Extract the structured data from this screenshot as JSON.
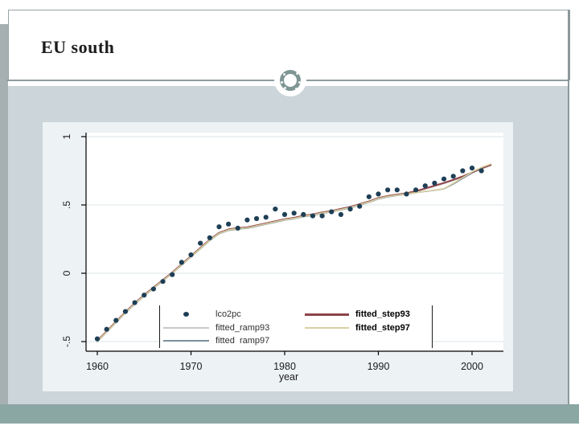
{
  "slide": {
    "title": "EU south",
    "colors": {
      "content_bg": "#ccd5d9",
      "footer_band": "#8ba7a3",
      "frame_border": "#8b999c",
      "ornament_ring": "#7e9694"
    }
  },
  "chart_data": {
    "type": "line",
    "title": "",
    "xlabel": "year",
    "ylabel": "",
    "xlim": [
      1958.8,
      2003.3
    ],
    "ylim": [
      -0.57,
      1.03
    ],
    "grid": "horizontal",
    "x_ticks": [
      1960,
      1970,
      1980,
      1990,
      2000
    ],
    "x_tick_labels": [
      "1960",
      "1970",
      "1980",
      "1990",
      "2000"
    ],
    "y_ticks": [
      1,
      0.5,
      0,
      -0.5
    ],
    "y_tick_labels": [
      "1",
      ".5",
      "0",
      "-.5"
    ],
    "colors": {
      "figure_bg": "#edf2f4",
      "plot_bg": "#ffffff",
      "grid": "#e2eaed",
      "axis": "#000000",
      "scatter": "#1e3f55",
      "ramp93": "#c6cac6",
      "ramp97": "#7b909b",
      "step93": "#8e4348",
      "step97": "#d9d0a0"
    },
    "series": [
      {
        "name": "lco2pc",
        "type": "scatter",
        "color": "#1e3f55",
        "x": [
          1960,
          1961,
          1962,
          1963,
          1964,
          1965,
          1966,
          1967,
          1968,
          1969,
          1970,
          1971,
          1972,
          1973,
          1974,
          1975,
          1976,
          1977,
          1978,
          1979,
          1980,
          1981,
          1982,
          1983,
          1984,
          1985,
          1986,
          1987,
          1988,
          1989,
          1990,
          1991,
          1992,
          1993,
          1994,
          1995,
          1996,
          1997,
          1998,
          1999,
          2000,
          2001
        ],
        "y": [
          -0.48,
          -0.41,
          -0.345,
          -0.28,
          -0.215,
          -0.16,
          -0.115,
          -0.06,
          -0.01,
          0.08,
          0.135,
          0.22,
          0.26,
          0.34,
          0.36,
          0.33,
          0.39,
          0.4,
          0.41,
          0.47,
          0.43,
          0.44,
          0.43,
          0.42,
          0.42,
          0.45,
          0.43,
          0.47,
          0.49,
          0.56,
          0.58,
          0.61,
          0.61,
          0.58,
          0.61,
          0.64,
          0.66,
          0.69,
          0.71,
          0.75,
          0.77,
          0.75
        ]
      },
      {
        "name": "fitted_ramp93",
        "type": "line",
        "color": "#c6cac6",
        "width": 1.3,
        "x": [
          1960,
          1961,
          1962,
          1963,
          1964,
          1965,
          1966,
          1967,
          1968,
          1969,
          1970,
          1971,
          1972,
          1973,
          1974,
          1975,
          1976,
          1977,
          1978,
          1979,
          1980,
          1981,
          1982,
          1983,
          1984,
          1985,
          1986,
          1987,
          1988,
          1989,
          1990,
          1991,
          1992,
          1993,
          1994,
          1995,
          1996,
          1997,
          1998,
          1999,
          2000,
          2001,
          2002
        ],
        "y": [
          -0.5,
          -0.43,
          -0.36,
          -0.29,
          -0.225,
          -0.165,
          -0.11,
          -0.055,
          0.0,
          0.06,
          0.12,
          0.18,
          0.24,
          0.29,
          0.315,
          0.325,
          0.33,
          0.345,
          0.36,
          0.375,
          0.39,
          0.4,
          0.415,
          0.425,
          0.44,
          0.45,
          0.465,
          0.48,
          0.5,
          0.52,
          0.545,
          0.56,
          0.57,
          0.58,
          0.595,
          0.615,
          0.635,
          0.655,
          0.678,
          0.703,
          0.733,
          0.763,
          0.788
        ]
      },
      {
        "name": "fitted_ramp97",
        "type": "line",
        "color": "#7b909b",
        "width": 1.3,
        "x": [
          1960,
          1961,
          1962,
          1963,
          1964,
          1965,
          1966,
          1967,
          1968,
          1969,
          1970,
          1971,
          1972,
          1973,
          1974,
          1975,
          1976,
          1977,
          1978,
          1979,
          1980,
          1981,
          1982,
          1983,
          1984,
          1985,
          1986,
          1987,
          1988,
          1989,
          1990,
          1991,
          1992,
          1993,
          1994,
          1995,
          1996,
          1997,
          1998,
          1999,
          2000,
          2001,
          2002
        ],
        "y": [
          -0.502,
          -0.432,
          -0.362,
          -0.292,
          -0.227,
          -0.167,
          -0.112,
          -0.057,
          -0.002,
          0.058,
          0.118,
          0.178,
          0.238,
          0.288,
          0.313,
          0.323,
          0.328,
          0.343,
          0.358,
          0.373,
          0.388,
          0.398,
          0.413,
          0.423,
          0.438,
          0.448,
          0.463,
          0.478,
          0.498,
          0.518,
          0.543,
          0.558,
          0.568,
          0.578,
          0.589,
          0.598,
          0.607,
          0.617,
          0.652,
          0.693,
          0.733,
          0.766,
          0.79
        ]
      },
      {
        "name": "fitted_step93",
        "type": "line",
        "color": "#8e4348",
        "width": 2,
        "x": [
          1960,
          1961,
          1962,
          1963,
          1964,
          1965,
          1966,
          1967,
          1968,
          1969,
          1970,
          1971,
          1972,
          1973,
          1974,
          1975,
          1976,
          1977,
          1978,
          1979,
          1980,
          1981,
          1982,
          1983,
          1984,
          1985,
          1986,
          1987,
          1988,
          1989,
          1990,
          1991,
          1992,
          1993,
          1994,
          1995,
          1996,
          1997,
          1998,
          1999,
          2000,
          2001,
          2002
        ],
        "y": [
          -0.494,
          -0.424,
          -0.354,
          -0.284,
          -0.219,
          -0.159,
          -0.104,
          -0.049,
          0.006,
          0.066,
          0.126,
          0.186,
          0.246,
          0.296,
          0.321,
          0.331,
          0.336,
          0.351,
          0.366,
          0.381,
          0.396,
          0.406,
          0.421,
          0.431,
          0.446,
          0.456,
          0.471,
          0.486,
          0.506,
          0.526,
          0.551,
          0.566,
          0.576,
          0.586,
          0.601,
          0.621,
          0.641,
          0.661,
          0.684,
          0.709,
          0.739,
          0.769,
          0.794
        ]
      },
      {
        "name": "fitted_step97",
        "type": "line",
        "color": "#d9d0a0",
        "width": 1.6,
        "x": [
          1960,
          1961,
          1962,
          1963,
          1964,
          1965,
          1966,
          1967,
          1968,
          1969,
          1970,
          1971,
          1972,
          1973,
          1974,
          1975,
          1976,
          1977,
          1978,
          1979,
          1980,
          1981,
          1982,
          1983,
          1984,
          1985,
          1986,
          1987,
          1988,
          1989,
          1990,
          1991,
          1992,
          1993,
          1994,
          1995,
          1996,
          1997,
          1998,
          1999,
          2000,
          2001,
          2002
        ],
        "y": [
          -0.498,
          -0.428,
          -0.358,
          -0.288,
          -0.223,
          -0.163,
          -0.108,
          -0.053,
          0.002,
          0.062,
          0.122,
          0.182,
          0.242,
          0.292,
          0.317,
          0.327,
          0.332,
          0.347,
          0.362,
          0.377,
          0.392,
          0.402,
          0.417,
          0.427,
          0.442,
          0.452,
          0.467,
          0.482,
          0.502,
          0.522,
          0.547,
          0.562,
          0.572,
          0.582,
          0.59,
          0.6,
          0.609,
          0.62,
          0.658,
          0.7,
          0.742,
          0.775,
          0.8
        ]
      }
    ],
    "legend": {
      "position": "bottom-center-inside",
      "entries": [
        {
          "label": "lco2pc",
          "symbol": "dot",
          "color": "#1e3f55"
        },
        {
          "label": "fitted_ramp93",
          "symbol": "line",
          "color": "#c6cac6"
        },
        {
          "label": "fitted  ramp97",
          "symbol": "line",
          "color": "#7b909b"
        },
        {
          "label": "fitted_step93",
          "symbol": "line",
          "color": "#8e4348"
        },
        {
          "label": "fitted_step97",
          "symbol": "line",
          "color": "#d9d0a0"
        }
      ]
    }
  }
}
